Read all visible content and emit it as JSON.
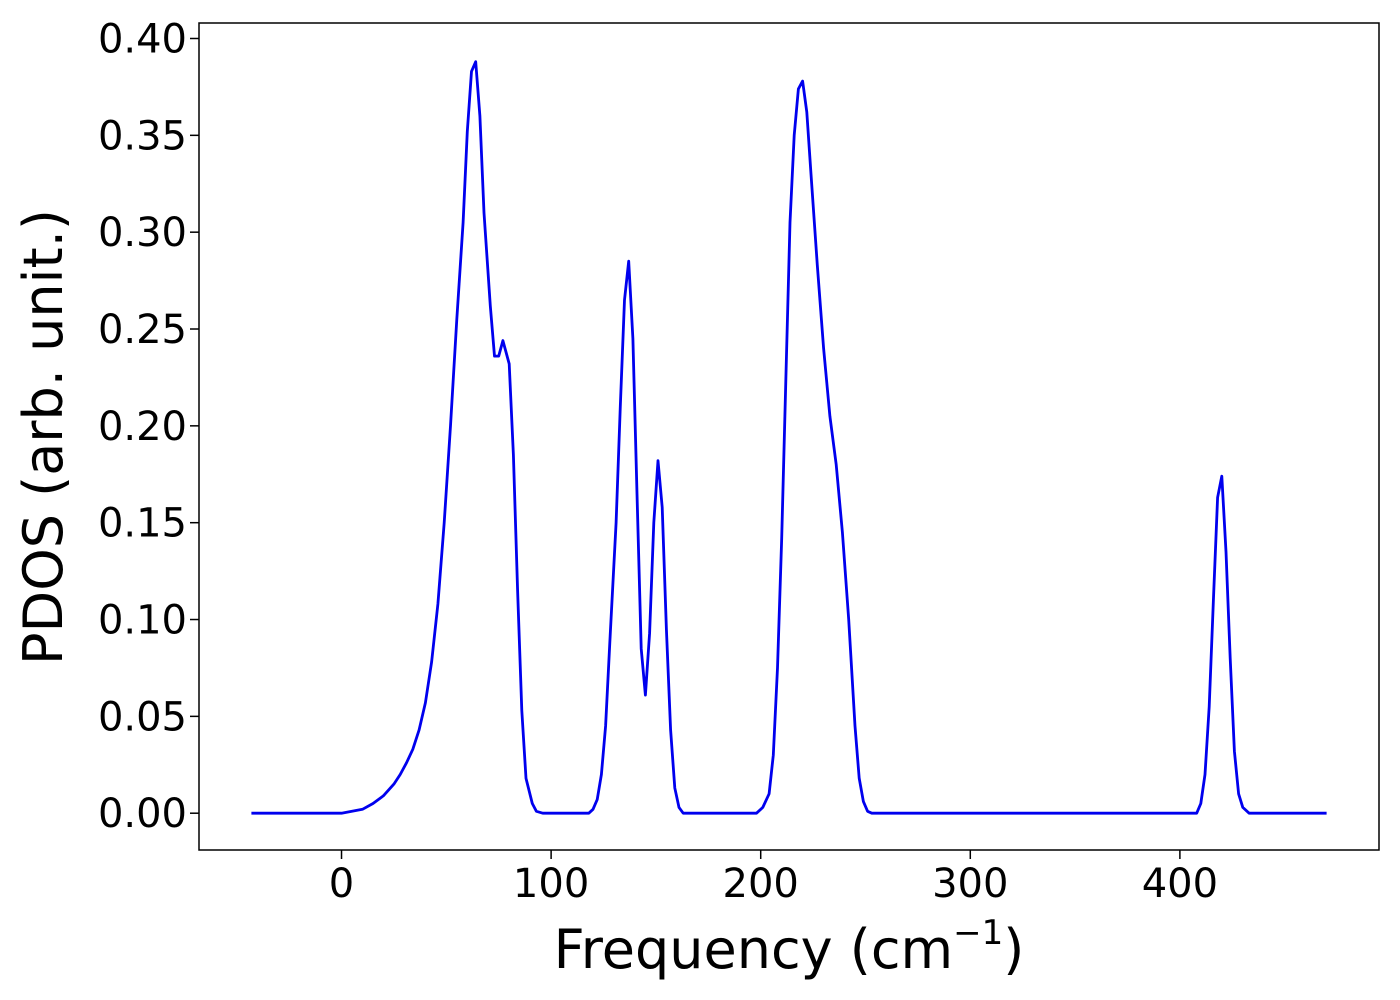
{
  "chart_data": {
    "type": "line",
    "xlabel": "Frequency (cm",
    "xlabel_sup": "−1",
    "xlabel_close": ")",
    "ylabel": "PDOS (arb. unit.)",
    "xlim": [
      -68,
      495
    ],
    "ylim": [
      -0.019,
      0.408
    ],
    "x_ticks": [
      0,
      100,
      200,
      300,
      400
    ],
    "x_tick_labels": [
      "0",
      "100",
      "200",
      "300",
      "400"
    ],
    "y_ticks": [
      0.0,
      0.05,
      0.1,
      0.15,
      0.2,
      0.25,
      0.3,
      0.35,
      0.4
    ],
    "y_tick_labels": [
      "0.00",
      "0.05",
      "0.10",
      "0.15",
      "0.20",
      "0.25",
      "0.30",
      "0.35",
      "0.40"
    ],
    "grid": false,
    "series": [
      {
        "color": "#0000ee",
        "points": [
          [
            -43,
            0.0
          ],
          [
            -20,
            0.0
          ],
          [
            0,
            0.0
          ],
          [
            5,
            0.001
          ],
          [
            10,
            0.002
          ],
          [
            15,
            0.005
          ],
          [
            20,
            0.009
          ],
          [
            25,
            0.015
          ],
          [
            28,
            0.02
          ],
          [
            31,
            0.026
          ],
          [
            34,
            0.033
          ],
          [
            37,
            0.043
          ],
          [
            40,
            0.057
          ],
          [
            43,
            0.078
          ],
          [
            46,
            0.108
          ],
          [
            49,
            0.15
          ],
          [
            52,
            0.2
          ],
          [
            55,
            0.255
          ],
          [
            58,
            0.305
          ],
          [
            60,
            0.352
          ],
          [
            62,
            0.383
          ],
          [
            64,
            0.388
          ],
          [
            66,
            0.36
          ],
          [
            68,
            0.31
          ],
          [
            71,
            0.262
          ],
          [
            73,
            0.236
          ],
          [
            75,
            0.236
          ],
          [
            77,
            0.244
          ],
          [
            80,
            0.232
          ],
          [
            82,
            0.185
          ],
          [
            84,
            0.115
          ],
          [
            86,
            0.053
          ],
          [
            88,
            0.018
          ],
          [
            91,
            0.005
          ],
          [
            93,
            0.001
          ],
          [
            96,
            0.0
          ],
          [
            118,
            0.0
          ],
          [
            120,
            0.002
          ],
          [
            122,
            0.007
          ],
          [
            124,
            0.02
          ],
          [
            126,
            0.045
          ],
          [
            128,
            0.088
          ],
          [
            131,
            0.15
          ],
          [
            133,
            0.21
          ],
          [
            135,
            0.265
          ],
          [
            137,
            0.285
          ],
          [
            139,
            0.245
          ],
          [
            141,
            0.165
          ],
          [
            143,
            0.085
          ],
          [
            145,
            0.061
          ],
          [
            147,
            0.093
          ],
          [
            149,
            0.15
          ],
          [
            151,
            0.182
          ],
          [
            153,
            0.158
          ],
          [
            155,
            0.095
          ],
          [
            157,
            0.043
          ],
          [
            159,
            0.013
          ],
          [
            161,
            0.003
          ],
          [
            163,
            0.0
          ],
          [
            198,
            0.0
          ],
          [
            201,
            0.003
          ],
          [
            204,
            0.01
          ],
          [
            206,
            0.03
          ],
          [
            208,
            0.075
          ],
          [
            210,
            0.142
          ],
          [
            212,
            0.225
          ],
          [
            214,
            0.305
          ],
          [
            216,
            0.35
          ],
          [
            218,
            0.374
          ],
          [
            220,
            0.378
          ],
          [
            222,
            0.362
          ],
          [
            224,
            0.33
          ],
          [
            227,
            0.283
          ],
          [
            230,
            0.24
          ],
          [
            233,
            0.205
          ],
          [
            236,
            0.18
          ],
          [
            239,
            0.145
          ],
          [
            242,
            0.1
          ],
          [
            245,
            0.045
          ],
          [
            247,
            0.018
          ],
          [
            249,
            0.006
          ],
          [
            251,
            0.001
          ],
          [
            253,
            0.0
          ],
          [
            408,
            0.0
          ],
          [
            410,
            0.005
          ],
          [
            412,
            0.02
          ],
          [
            414,
            0.055
          ],
          [
            416,
            0.11
          ],
          [
            418,
            0.163
          ],
          [
            420,
            0.174
          ],
          [
            422,
            0.135
          ],
          [
            424,
            0.08
          ],
          [
            426,
            0.032
          ],
          [
            428,
            0.01
          ],
          [
            430,
            0.003
          ],
          [
            433,
            0.0
          ],
          [
            470,
            0.0
          ]
        ]
      }
    ]
  }
}
